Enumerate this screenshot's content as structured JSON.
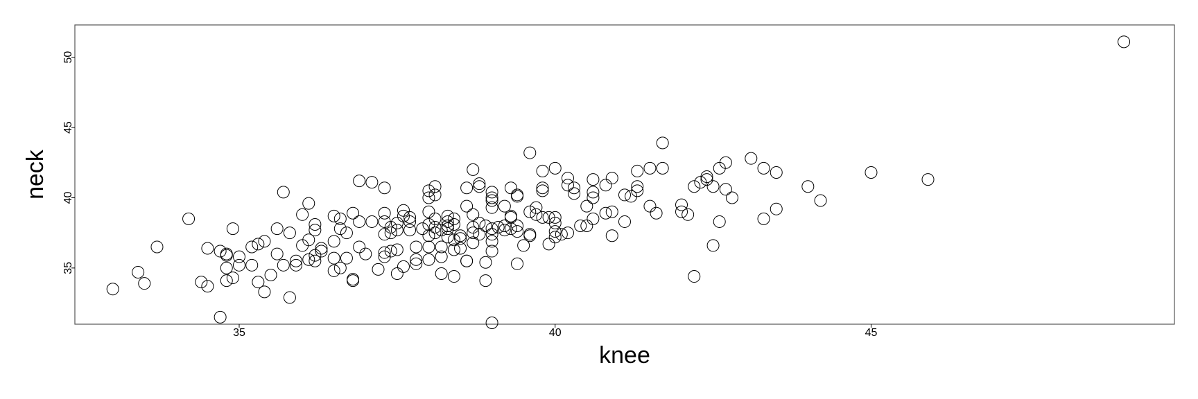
{
  "chart_data": {
    "type": "scatter",
    "title": "",
    "xlabel": "knee",
    "ylabel": "neck",
    "xlim": [
      32.4,
      49.8
    ],
    "ylim": [
      31.0,
      52.3
    ],
    "xticks": [
      35,
      40,
      45
    ],
    "yticks": [
      35,
      40,
      45,
      50
    ],
    "grid": false,
    "legend": "none",
    "marker_color": "#000000",
    "points": [
      [
        33.0,
        33.5
      ],
      [
        33.4,
        34.7
      ],
      [
        33.5,
        33.9
      ],
      [
        33.7,
        36.5
      ],
      [
        34.2,
        38.5
      ],
      [
        34.4,
        34.0
      ],
      [
        34.5,
        33.7
      ],
      [
        34.5,
        36.4
      ],
      [
        34.7,
        36.2
      ],
      [
        34.7,
        31.5
      ],
      [
        34.8,
        35.0
      ],
      [
        34.8,
        34.1
      ],
      [
        34.8,
        36.0
      ],
      [
        34.8,
        35.9
      ],
      [
        34.9,
        34.3
      ],
      [
        34.9,
        37.8
      ],
      [
        35.0,
        35.2
      ],
      [
        35.0,
        35.8
      ],
      [
        35.2,
        36.5
      ],
      [
        35.2,
        35.2
      ],
      [
        35.3,
        34.0
      ],
      [
        35.3,
        36.7
      ],
      [
        35.4,
        33.3
      ],
      [
        35.4,
        36.9
      ],
      [
        35.5,
        34.5
      ],
      [
        35.6,
        37.8
      ],
      [
        35.6,
        36.0
      ],
      [
        35.7,
        40.4
      ],
      [
        35.7,
        35.2
      ],
      [
        35.8,
        32.9
      ],
      [
        35.8,
        37.5
      ],
      [
        35.9,
        35.2
      ],
      [
        35.9,
        35.5
      ],
      [
        36.0,
        38.8
      ],
      [
        36.0,
        36.6
      ],
      [
        36.1,
        39.6
      ],
      [
        36.1,
        35.6
      ],
      [
        36.1,
        37.0
      ],
      [
        36.2,
        37.7
      ],
      [
        36.2,
        38.1
      ],
      [
        36.2,
        35.5
      ],
      [
        36.2,
        35.9
      ],
      [
        36.3,
        36.4
      ],
      [
        36.3,
        36.2
      ],
      [
        36.5,
        38.7
      ],
      [
        36.5,
        36.9
      ],
      [
        36.5,
        35.7
      ],
      [
        36.5,
        34.8
      ],
      [
        36.6,
        37.8
      ],
      [
        36.6,
        35.0
      ],
      [
        36.6,
        38.5
      ],
      [
        36.7,
        37.5
      ],
      [
        36.7,
        35.7
      ],
      [
        36.8,
        34.2
      ],
      [
        36.8,
        34.1
      ],
      [
        36.8,
        38.9
      ],
      [
        36.9,
        41.2
      ],
      [
        36.9,
        38.3
      ],
      [
        36.9,
        36.5
      ],
      [
        37.0,
        36.0
      ],
      [
        37.1,
        41.1
      ],
      [
        37.1,
        38.3
      ],
      [
        37.2,
        34.9
      ],
      [
        37.3,
        40.7
      ],
      [
        37.3,
        38.9
      ],
      [
        37.3,
        38.3
      ],
      [
        37.3,
        37.4
      ],
      [
        37.3,
        36.1
      ],
      [
        37.3,
        35.8
      ],
      [
        37.4,
        37.9
      ],
      [
        37.4,
        37.5
      ],
      [
        37.4,
        36.2
      ],
      [
        37.5,
        38.2
      ],
      [
        37.5,
        37.7
      ],
      [
        37.5,
        36.3
      ],
      [
        37.5,
        34.6
      ],
      [
        37.6,
        39.1
      ],
      [
        37.6,
        38.7
      ],
      [
        37.6,
        35.1
      ],
      [
        37.7,
        38.6
      ],
      [
        37.7,
        38.3
      ],
      [
        37.7,
        37.7
      ],
      [
        37.8,
        36.5
      ],
      [
        37.8,
        35.6
      ],
      [
        37.8,
        35.3
      ],
      [
        37.9,
        37.8
      ],
      [
        38.0,
        40.5
      ],
      [
        38.0,
        40.0
      ],
      [
        38.0,
        39.0
      ],
      [
        38.0,
        38.1
      ],
      [
        38.0,
        37.3
      ],
      [
        38.0,
        36.5
      ],
      [
        38.0,
        35.6
      ],
      [
        38.1,
        40.8
      ],
      [
        38.1,
        40.2
      ],
      [
        38.1,
        38.5
      ],
      [
        38.1,
        37.9
      ],
      [
        38.1,
        37.5
      ],
      [
        38.2,
        37.7
      ],
      [
        38.2,
        36.5
      ],
      [
        38.2,
        35.8
      ],
      [
        38.2,
        34.6
      ],
      [
        38.3,
        38.7
      ],
      [
        38.3,
        38.3
      ],
      [
        38.3,
        38.0
      ],
      [
        38.3,
        37.8
      ],
      [
        38.3,
        37.2
      ],
      [
        38.4,
        38.5
      ],
      [
        38.4,
        38.1
      ],
      [
        38.4,
        37.0
      ],
      [
        38.4,
        36.3
      ],
      [
        38.4,
        34.4
      ],
      [
        38.5,
        37.3
      ],
      [
        38.5,
        36.4
      ],
      [
        38.5,
        37.1
      ],
      [
        38.6,
        40.7
      ],
      [
        38.6,
        39.4
      ],
      [
        38.6,
        35.5
      ],
      [
        38.6,
        35.5
      ],
      [
        38.7,
        42.0
      ],
      [
        38.7,
        38.8
      ],
      [
        38.7,
        37.9
      ],
      [
        38.7,
        37.5
      ],
      [
        38.7,
        36.8
      ],
      [
        38.8,
        41.0
      ],
      [
        38.8,
        40.8
      ],
      [
        38.8,
        38.2
      ],
      [
        38.8,
        37.4
      ],
      [
        38.9,
        38.0
      ],
      [
        38.9,
        35.4
      ],
      [
        38.9,
        34.1
      ],
      [
        39.0,
        40.4
      ],
      [
        39.0,
        40.0
      ],
      [
        39.0,
        39.8
      ],
      [
        39.0,
        39.3
      ],
      [
        39.0,
        37.8
      ],
      [
        39.0,
        37.4
      ],
      [
        39.0,
        36.9
      ],
      [
        39.0,
        36.2
      ],
      [
        39.0,
        31.1
      ],
      [
        39.1,
        37.9
      ],
      [
        39.2,
        39.4
      ],
      [
        39.2,
        38.0
      ],
      [
        39.2,
        37.7
      ],
      [
        39.3,
        40.7
      ],
      [
        39.3,
        38.7
      ],
      [
        39.3,
        38.6
      ],
      [
        39.3,
        37.8
      ],
      [
        39.4,
        40.2
      ],
      [
        39.4,
        40.1
      ],
      [
        39.4,
        38.0
      ],
      [
        39.4,
        37.6
      ],
      [
        39.4,
        35.3
      ],
      [
        39.5,
        36.6
      ],
      [
        39.6,
        43.2
      ],
      [
        39.6,
        39.0
      ],
      [
        39.6,
        37.4
      ],
      [
        39.6,
        37.3
      ],
      [
        39.7,
        39.3
      ],
      [
        39.7,
        38.8
      ],
      [
        39.8,
        41.9
      ],
      [
        39.8,
        40.7
      ],
      [
        39.8,
        40.5
      ],
      [
        39.8,
        38.6
      ],
      [
        39.9,
        38.6
      ],
      [
        39.9,
        36.7
      ],
      [
        40.0,
        42.1
      ],
      [
        40.0,
        38.6
      ],
      [
        40.0,
        38.2
      ],
      [
        40.0,
        37.6
      ],
      [
        40.0,
        37.2
      ],
      [
        40.1,
        37.4
      ],
      [
        40.2,
        41.4
      ],
      [
        40.2,
        40.9
      ],
      [
        40.2,
        37.5
      ],
      [
        40.3,
        40.7
      ],
      [
        40.3,
        40.3
      ],
      [
        40.4,
        38.0
      ],
      [
        40.5,
        39.4
      ],
      [
        40.5,
        38.0
      ],
      [
        40.6,
        41.3
      ],
      [
        40.6,
        40.4
      ],
      [
        40.6,
        40.0
      ],
      [
        40.6,
        38.5
      ],
      [
        40.8,
        40.9
      ],
      [
        40.8,
        38.9
      ],
      [
        40.9,
        41.4
      ],
      [
        40.9,
        39.0
      ],
      [
        40.9,
        37.3
      ],
      [
        41.1,
        40.2
      ],
      [
        41.1,
        38.3
      ],
      [
        41.2,
        40.1
      ],
      [
        41.3,
        41.9
      ],
      [
        41.3,
        40.8
      ],
      [
        41.3,
        40.5
      ],
      [
        41.5,
        42.1
      ],
      [
        41.5,
        39.4
      ],
      [
        41.6,
        38.9
      ],
      [
        41.7,
        43.9
      ],
      [
        41.7,
        42.1
      ],
      [
        42.0,
        39.5
      ],
      [
        42.0,
        39.0
      ],
      [
        42.1,
        38.8
      ],
      [
        42.2,
        40.8
      ],
      [
        42.2,
        34.4
      ],
      [
        42.3,
        41.1
      ],
      [
        42.4,
        41.5
      ],
      [
        42.4,
        41.3
      ],
      [
        42.5,
        40.8
      ],
      [
        42.5,
        36.6
      ],
      [
        42.6,
        42.1
      ],
      [
        42.6,
        38.3
      ],
      [
        42.7,
        42.5
      ],
      [
        42.7,
        40.6
      ],
      [
        42.8,
        40.0
      ],
      [
        43.1,
        42.8
      ],
      [
        43.3,
        42.1
      ],
      [
        43.3,
        38.5
      ],
      [
        43.5,
        41.8
      ],
      [
        43.5,
        39.2
      ],
      [
        44.0,
        40.8
      ],
      [
        44.2,
        39.8
      ],
      [
        45.0,
        41.8
      ],
      [
        45.9,
        41.3
      ],
      [
        49.0,
        51.1
      ]
    ]
  }
}
